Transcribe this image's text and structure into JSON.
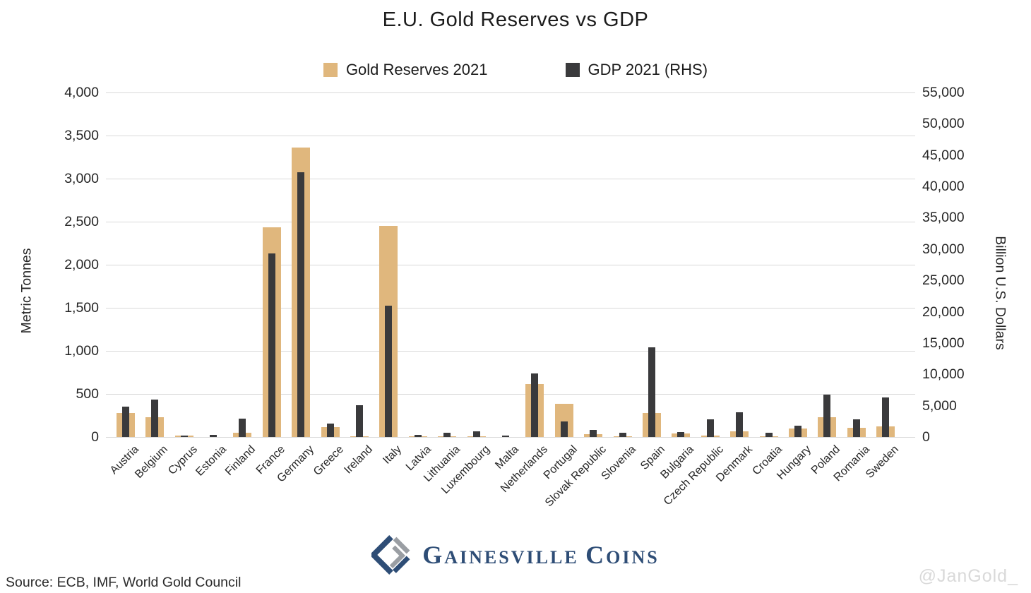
{
  "title": "E.U. Gold Reserves vs GDP",
  "legend": [
    {
      "label": "Gold Reserves 2021",
      "color": "#E0B77D"
    },
    {
      "label": "GDP 2021 (RHS)",
      "color": "#3A3A3C"
    }
  ],
  "chart_data": {
    "type": "bar",
    "title": "E.U. Gold Reserves vs GDP",
    "categories": [
      "Austria",
      "Belgium",
      "Cyprus",
      "Estonia",
      "Finland",
      "France",
      "Germany",
      "Greece",
      "Ireland",
      "Italy",
      "Latvia",
      "Lithuania",
      "Luxembourg",
      "Malta",
      "Netherlands",
      "Portugal",
      "Slovak Republic",
      "Slovenia",
      "Spain",
      "Bulgaria",
      "Czech Republic",
      "Denmark",
      "Croatia",
      "Hungary",
      "Poland",
      "Romania",
      "Sweden"
    ],
    "series": [
      {
        "name": "Gold Reserves 2021",
        "axis": "left",
        "unit": "Metric Tonnes",
        "color": "#E0B77D",
        "values": [
          280,
          227,
          14,
          0.3,
          49,
          2436,
          3359,
          114,
          12,
          2452,
          6.7,
          5.8,
          2.2,
          0.3,
          612,
          383,
          32,
          3.2,
          280,
          41,
          14,
          66.5,
          2,
          94.5,
          231,
          104,
          126
        ]
      },
      {
        "name": "GDP 2021 (RHS)",
        "axis": "right",
        "unit": "Billion U.S. Dollars (as labeled)",
        "color": "#3A3A3C",
        "values": [
          4790,
          5940,
          280,
          370,
          2970,
          29350,
          42260,
          2160,
          5040,
          21010,
          390,
          660,
          860,
          170,
          10130,
          2530,
          1160,
          620,
          14270,
          800,
          2820,
          3980,
          680,
          1820,
          6740,
          2840,
          6270
        ]
      }
    ],
    "left_axis": {
      "label": "Metric Tonnes",
      "min": 0,
      "max": 4000,
      "step": 500
    },
    "right_axis": {
      "label": "Billion U.S. Dollars",
      "min": 0,
      "max": 55000,
      "step": 5000
    },
    "grid": "horizontal gridlines at left-axis steps",
    "legend_position": "top-center"
  },
  "footer": {
    "source": "Source: ECB, IMF, World Gold Council",
    "watermark": "@JanGold_",
    "logo_text": "Gainesville Coins"
  },
  "colors": {
    "gold_bar": "#E0B77D",
    "gdp_bar": "#3A3A3C",
    "gridline": "#d9d9d9",
    "logo_navy": "#2E4D76",
    "logo_gray": "#9A9EA3",
    "watermark": "#d9d9d9"
  }
}
